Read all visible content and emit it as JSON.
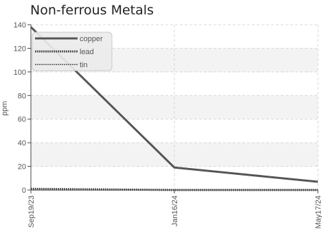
{
  "chart_data": {
    "type": "line",
    "title": "Non-ferrous Metals",
    "ylabel": "ppm",
    "xlabel": "",
    "categories": [
      "Sep19/23",
      "Jan16/24",
      "May17/24"
    ],
    "ylim": [
      0,
      140
    ],
    "yticks": [
      0,
      20,
      40,
      60,
      80,
      100,
      120,
      140
    ],
    "grid": true,
    "legend_position": "top-left",
    "series": [
      {
        "name": "copper",
        "values": [
          138,
          19,
          7
        ],
        "color": "#555555",
        "style": "solid"
      },
      {
        "name": "lead",
        "values": [
          1,
          0,
          0
        ],
        "color": "#555555",
        "style": "dotted"
      },
      {
        "name": "tin",
        "values": [
          0,
          0,
          0
        ],
        "color": "#777777",
        "style": "dotted-thin"
      }
    ]
  }
}
